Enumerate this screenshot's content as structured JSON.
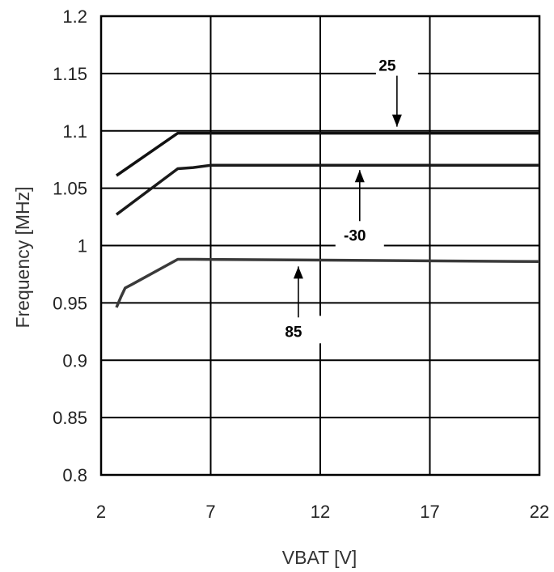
{
  "chart_data": {
    "type": "line",
    "title": "",
    "xlabel": "VBAT [V]",
    "ylabel": "Frequency [MHz]",
    "xlim": [
      2,
      22
    ],
    "ylim": [
      0.8,
      1.2
    ],
    "xticks": [
      2,
      7,
      12,
      17,
      22
    ],
    "yticks": [
      0.8,
      0.85,
      0.9,
      0.95,
      1,
      1.05,
      1.1,
      1.15,
      1.2
    ],
    "xtick_labels": [
      "2",
      "7",
      "12",
      "17",
      "22"
    ],
    "ytick_labels": [
      "0.8",
      "0.85",
      "0.9",
      "0.95",
      "1",
      "1.05",
      "1.1",
      "1.15",
      "1.2"
    ],
    "grid": true,
    "series": [
      {
        "name": "25",
        "color": "#111111",
        "x": [
          2.7,
          5.5,
          22
        ],
        "y": [
          1.061,
          1.098,
          1.098
        ]
      },
      {
        "name": "-30",
        "color": "#1a1a1a",
        "x": [
          2.7,
          5.5,
          6.2,
          7,
          22
        ],
        "y": [
          1.027,
          1.067,
          1.068,
          1.07,
          1.07
        ]
      },
      {
        "name": "85",
        "color": "#3a3a3a",
        "x": [
          2.7,
          2.9,
          3.1,
          3.4,
          5.5,
          6.3,
          22
        ],
        "y": [
          0.946,
          0.955,
          0.963,
          0.966,
          0.988,
          0.988,
          0.986
        ]
      }
    ],
    "annotations": [
      {
        "label": "25",
        "series": "25",
        "direction": "down",
        "x": 15.5,
        "y": 1.098
      },
      {
        "label": "-30",
        "series": "-30",
        "direction": "up",
        "x": 13.8,
        "y": 1.07
      },
      {
        "label": "85",
        "series": "85",
        "direction": "up",
        "x": 11.0,
        "y": 0.986
      }
    ]
  }
}
